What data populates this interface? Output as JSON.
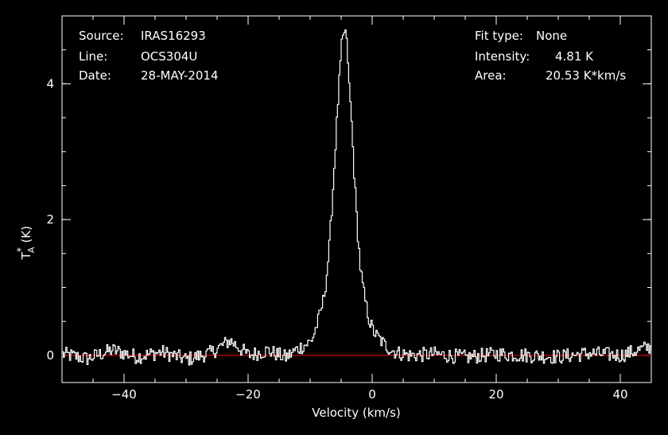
{
  "info": {
    "source_label": "Source:",
    "source_value": "IRAS16293",
    "line_label": "Line:",
    "line_value": "OCS304U",
    "date_label": "Date:",
    "date_value": "28-MAY-2014",
    "fit_label": "Fit type:",
    "fit_value": "None",
    "intensity_label": "Intensity:",
    "intensity_value": "4.81 K",
    "area_label": "Area:",
    "area_value": "20.53 K*km/s"
  },
  "chart_data": {
    "type": "line",
    "xlabel": "Velocity (km/s)",
    "ylabel_main": "T",
    "ylabel_sup": "*",
    "ylabel_sub": "A",
    "ylabel_unit": "(K)",
    "xlim": [
      -50,
      45
    ],
    "ylim": [
      -0.4,
      5.0
    ],
    "x_ticks": [
      {
        "value": -40,
        "label": "−40"
      },
      {
        "value": -20,
        "label": "−20"
      },
      {
        "value": 0,
        "label": "0"
      },
      {
        "value": 20,
        "label": "20"
      },
      {
        "value": 40,
        "label": "40"
      }
    ],
    "y_ticks": [
      {
        "value": 0,
        "label": "0"
      },
      {
        "value": 2,
        "label": "2"
      },
      {
        "value": 4,
        "label": "4"
      }
    ],
    "x_minor_step": 5,
    "y_minor_step": 0.5,
    "grid": false,
    "colors": {
      "background": "#000000",
      "axes": "#ffffff",
      "spectrum": "#ffffff",
      "baseline": "#cc0000"
    },
    "baseline_value": 0,
    "series": [
      {
        "x": [
          -50,
          -46,
          -42,
          -38,
          -34,
          -30,
          -26,
          -23,
          -20,
          -17,
          -14,
          -12,
          -11,
          -10,
          -9.5,
          -9,
          -8.5,
          -8,
          -7.5,
          -7,
          -6.5,
          -6,
          -5.5,
          -5,
          -4.5,
          -4.3,
          -4,
          -3.8,
          -3.5,
          -3,
          -2.5,
          -2,
          -1.5,
          -1,
          -0.5,
          0,
          0.5,
          1,
          1.5,
          2,
          3,
          4,
          6,
          10,
          15,
          20,
          25,
          30,
          35,
          40,
          44.5
        ],
        "y": [
          0.02,
          -0.05,
          0.08,
          -0.02,
          0.05,
          -0.06,
          0.04,
          0.22,
          0.0,
          0.07,
          -0.03,
          0.1,
          0.15,
          0.2,
          0.3,
          0.45,
          0.6,
          0.8,
          1.1,
          1.6,
          2.3,
          3.1,
          3.9,
          4.55,
          4.81,
          4.7,
          4.35,
          3.95,
          3.6,
          2.7,
          1.9,
          1.3,
          0.95,
          0.7,
          0.5,
          0.38,
          0.3,
          0.25,
          0.2,
          0.15,
          0.08,
          0.04,
          0.0,
          0.02,
          -0.03,
          0.02,
          0.0,
          -0.02,
          0.03,
          0.0,
          0.12
        ]
      }
    ]
  }
}
